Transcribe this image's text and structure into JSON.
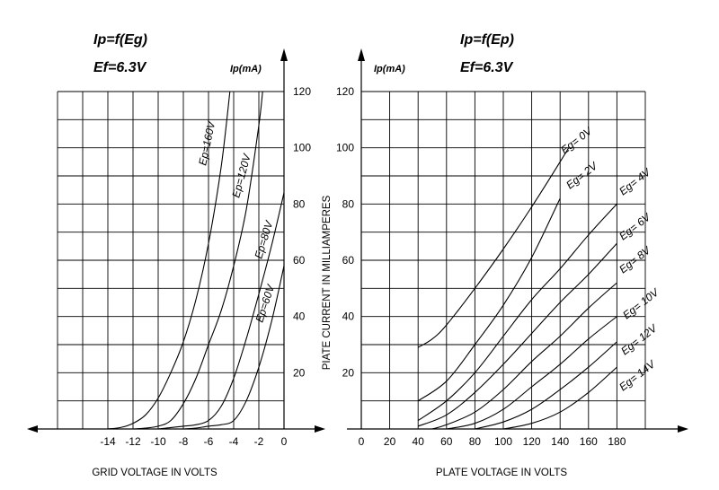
{
  "chart_data": [
    {
      "type": "line",
      "title": "Ip=f(Eg)",
      "subtitle": "Ef=6.3V",
      "xlabel": "GRID VOLTAGE IN VOLTS",
      "ylabel": "Ip(mA)",
      "xlim": [
        -18,
        0
      ],
      "ylim": [
        0,
        120
      ],
      "x_ticks": [
        "-14",
        "-12",
        "-10",
        "-8",
        "-6",
        "-4",
        "-2",
        "0"
      ],
      "y_ticks": [
        "20",
        "40",
        "60",
        "80",
        "100",
        "120"
      ],
      "grid": true,
      "series": [
        {
          "name": "Ep=160V",
          "points": [
            [
              -14,
              0
            ],
            [
              -13,
              0.5
            ],
            [
              -12,
              2
            ],
            [
              -11,
              5
            ],
            [
              -10,
              11
            ],
            [
              -9,
              20
            ],
            [
              -8,
              31
            ],
            [
              -7,
              46
            ],
            [
              -6,
              66
            ],
            [
              -5,
              93
            ],
            [
              -4.3,
              120
            ]
          ]
        },
        {
          "name": "Ep=120V",
          "points": [
            [
              -12,
              0
            ],
            [
              -11,
              0.3
            ],
            [
              -10,
              1
            ],
            [
              -9,
              3
            ],
            [
              -8,
              9
            ],
            [
              -7,
              18
            ],
            [
              -6,
              30
            ],
            [
              -5,
              42
            ],
            [
              -4,
              58
            ],
            [
              -3,
              78
            ],
            [
              -2,
              108
            ],
            [
              -1.7,
              120
            ]
          ]
        },
        {
          "name": "Ep=80V",
          "points": [
            [
              -10,
              0
            ],
            [
              -9,
              0.5
            ],
            [
              -8,
              1
            ],
            [
              -7,
              1.5
            ],
            [
              -6,
              3
            ],
            [
              -5,
              8
            ],
            [
              -4,
              18
            ],
            [
              -3,
              32
            ],
            [
              -2,
              48
            ],
            [
              -1,
              65
            ],
            [
              0,
              84
            ]
          ]
        },
        {
          "name": "Ep=60V",
          "points": [
            [
              -8,
              0
            ],
            [
              -7,
              0.3
            ],
            [
              -6,
              1
            ],
            [
              -5,
              1.5
            ],
            [
              -4,
              3
            ],
            [
              -3,
              10
            ],
            [
              -2,
              22
            ],
            [
              -1,
              38
            ],
            [
              0,
              58
            ]
          ]
        }
      ]
    },
    {
      "type": "line",
      "title": "Ip=f(Ep)",
      "subtitle": "Ef=6.3V",
      "xlabel": "PLATE VOLTAGE IN VOLTS",
      "ylabel": "PIATE CURRENT IN MILLIAMPERES",
      "unit_label": "Ip(mA)",
      "xlim": [
        0,
        200
      ],
      "ylim": [
        0,
        120
      ],
      "x_ticks": [
        "0",
        "20",
        "40",
        "60",
        "80",
        "100",
        "120",
        "140",
        "160",
        "180"
      ],
      "y_ticks": [
        "20",
        "40",
        "60",
        "80",
        "100",
        "120"
      ],
      "grid": true,
      "series": [
        {
          "name": "Eg= 0V",
          "points": [
            [
              40,
              29
            ],
            [
              50,
              32
            ],
            [
              60,
              37
            ],
            [
              80,
              50
            ],
            [
              100,
              64
            ],
            [
              120,
              79
            ],
            [
              140,
              95
            ],
            [
              146,
              100
            ]
          ]
        },
        {
          "name": "Eg= 2V",
          "points": [
            [
              40,
              10
            ],
            [
              60,
              17
            ],
            [
              80,
              30
            ],
            [
              100,
              44
            ],
            [
              120,
              61
            ],
            [
              140,
              82
            ]
          ]
        },
        {
          "name": "Eg= 4V",
          "points": [
            [
              40,
              3
            ],
            [
              60,
              10
            ],
            [
              80,
              20
            ],
            [
              100,
              33
            ],
            [
              120,
              46
            ],
            [
              140,
              57
            ],
            [
              160,
              69
            ],
            [
              180,
              80
            ]
          ]
        },
        {
          "name": "Eg= 6V",
          "points": [
            [
              40,
              1
            ],
            [
              60,
              5
            ],
            [
              80,
              13
            ],
            [
              100,
              23
            ],
            [
              120,
              34
            ],
            [
              140,
              45
            ],
            [
              160,
              55
            ],
            [
              180,
              66
            ]
          ]
        },
        {
          "name": "Eg= 8V",
          "points": [
            [
              50,
              0
            ],
            [
              60,
              1.5
            ],
            [
              80,
              6
            ],
            [
              100,
              14
            ],
            [
              120,
              24
            ],
            [
              140,
              33
            ],
            [
              160,
              43
            ],
            [
              180,
              52
            ]
          ]
        },
        {
          "name": "Eg= 10V",
          "points": [
            [
              60,
              0
            ],
            [
              80,
              2
            ],
            [
              100,
              7
            ],
            [
              120,
              15
            ],
            [
              140,
              23
            ],
            [
              160,
              32
            ],
            [
              180,
              40
            ]
          ]
        },
        {
          "name": "Eg= 12V",
          "points": [
            [
              80,
              0
            ],
            [
              100,
              2.5
            ],
            [
              120,
              7
            ],
            [
              140,
              14
            ],
            [
              160,
              22
            ],
            [
              180,
              31
            ]
          ]
        },
        {
          "name": "Eg= 14V",
          "points": [
            [
              100,
              0
            ],
            [
              120,
              2
            ],
            [
              140,
              6
            ],
            [
              160,
              13
            ],
            [
              180,
              22
            ]
          ]
        }
      ]
    }
  ]
}
